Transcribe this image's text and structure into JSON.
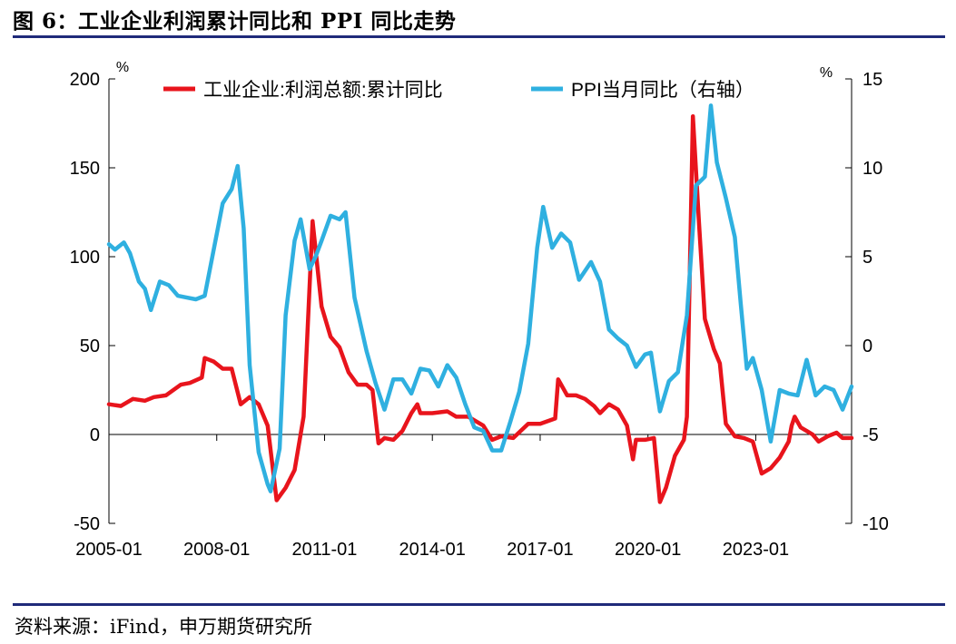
{
  "figure": {
    "title": "图 6：工业企业利润累计同比和 PPI 同比走势",
    "source": "资料来源：iFind，申万期货研究所",
    "colors": {
      "rule": "#1f2a7a",
      "profit": "#e8141c",
      "ppi": "#2fb0e0"
    }
  },
  "chart_data": {
    "type": "line",
    "x_axis": {
      "start": "2005-01",
      "end": "2025-09",
      "tick_labels": [
        "2005-01",
        "2008-01",
        "2011-01",
        "2014-01",
        "2017-01",
        "2020-01",
        "2023-01"
      ]
    },
    "y_left": {
      "unit": "%",
      "range": [
        -50,
        200
      ],
      "ticks": [
        "-50",
        "0",
        "50",
        "100",
        "150",
        "200"
      ]
    },
    "y_right": {
      "unit": "%",
      "range": [
        -10,
        15
      ],
      "ticks": [
        "-10",
        "-5",
        "0",
        "5",
        "10",
        "15"
      ]
    },
    "grid": false,
    "legend_position": "top",
    "zero_line": true,
    "series": [
      {
        "name": "工业企业:利润总额:累计同比",
        "axis": "left",
        "color": "#e8141c",
        "points": [
          [
            "2005-01",
            17
          ],
          [
            "2005-05",
            16
          ],
          [
            "2005-09",
            20
          ],
          [
            "2006-01",
            19
          ],
          [
            "2006-04",
            21
          ],
          [
            "2006-08",
            22
          ],
          [
            "2007-01",
            28
          ],
          [
            "2007-04",
            29
          ],
          [
            "2007-08",
            32
          ],
          [
            "2007-09",
            43
          ],
          [
            "2007-12",
            41
          ],
          [
            "2008-03",
            37
          ],
          [
            "2008-06",
            37
          ],
          [
            "2008-09",
            17
          ],
          [
            "2008-12",
            21
          ],
          [
            "2009-03",
            17
          ],
          [
            "2009-06",
            5
          ],
          [
            "2009-09",
            -37
          ],
          [
            "2009-12",
            -30
          ],
          [
            "2010-03",
            -20
          ],
          [
            "2010-06",
            10
          ],
          [
            "2010-09",
            120
          ],
          [
            "2010-12",
            72
          ],
          [
            "2011-03",
            55
          ],
          [
            "2011-06",
            49
          ],
          [
            "2011-09",
            35
          ],
          [
            "2011-12",
            28
          ],
          [
            "2012-03",
            28
          ],
          [
            "2012-05",
            25
          ],
          [
            "2012-07",
            -5
          ],
          [
            "2012-09",
            -2
          ],
          [
            "2012-12",
            -3
          ],
          [
            "2013-03",
            2
          ],
          [
            "2013-06",
            12
          ],
          [
            "2013-08",
            17
          ],
          [
            "2013-09",
            12
          ],
          [
            "2014-01",
            12
          ],
          [
            "2014-06",
            13
          ],
          [
            "2014-09",
            10
          ],
          [
            "2015-01",
            10
          ],
          [
            "2015-06",
            5
          ],
          [
            "2015-09",
            -3
          ],
          [
            "2015-12",
            -1
          ],
          [
            "2016-04",
            -2
          ],
          [
            "2016-09",
            6
          ],
          [
            "2017-01",
            6
          ],
          [
            "2017-06",
            9
          ],
          [
            "2017-07",
            31
          ],
          [
            "2017-10",
            22
          ],
          [
            "2018-01",
            22
          ],
          [
            "2018-04",
            20
          ],
          [
            "2018-07",
            16
          ],
          [
            "2018-09",
            12
          ],
          [
            "2018-12",
            17
          ],
          [
            "2019-03",
            14
          ],
          [
            "2019-06",
            5
          ],
          [
            "2019-08",
            -14
          ],
          [
            "2019-09",
            -3
          ],
          [
            "2019-12",
            -3
          ],
          [
            "2020-03",
            -2
          ],
          [
            "2020-05",
            -38
          ],
          [
            "2020-07",
            -30
          ],
          [
            "2020-10",
            -12
          ],
          [
            "2021-01",
            -3
          ],
          [
            "2021-02",
            10
          ],
          [
            "2021-04",
            179
          ],
          [
            "2021-06",
            120
          ],
          [
            "2021-08",
            65
          ],
          [
            "2021-11",
            48
          ],
          [
            "2022-01",
            40
          ],
          [
            "2022-03",
            6
          ],
          [
            "2022-06",
            -1
          ],
          [
            "2022-09",
            -2
          ],
          [
            "2022-12",
            -4
          ],
          [
            "2023-03",
            -22
          ],
          [
            "2023-06",
            -19
          ],
          [
            "2023-09",
            -13
          ],
          [
            "2023-12",
            -4
          ],
          [
            "2024-01",
            5
          ],
          [
            "2024-02",
            10
          ],
          [
            "2024-04",
            4
          ],
          [
            "2024-08",
            0
          ],
          [
            "2024-10",
            -4
          ],
          [
            "2025-01",
            -1
          ],
          [
            "2025-04",
            1
          ],
          [
            "2025-06",
            -2
          ],
          [
            "2025-09",
            -2
          ]
        ]
      },
      {
        "name": "PPI当月同比（右轴）",
        "axis": "right",
        "color": "#2fb0e0",
        "points": [
          [
            "2005-01",
            5.7
          ],
          [
            "2005-03",
            5.4
          ],
          [
            "2005-06",
            5.8
          ],
          [
            "2005-08",
            5.2
          ],
          [
            "2005-11",
            3.6
          ],
          [
            "2006-01",
            3.2
          ],
          [
            "2006-03",
            2.0
          ],
          [
            "2006-06",
            3.6
          ],
          [
            "2006-09",
            3.4
          ],
          [
            "2006-12",
            2.8
          ],
          [
            "2007-03",
            2.7
          ],
          [
            "2007-06",
            2.6
          ],
          [
            "2007-09",
            2.8
          ],
          [
            "2007-12",
            5.4
          ],
          [
            "2008-03",
            8.0
          ],
          [
            "2008-06",
            8.8
          ],
          [
            "2008-08",
            10.1
          ],
          [
            "2008-10",
            6.6
          ],
          [
            "2008-12",
            -1.1
          ],
          [
            "2009-03",
            -6.0
          ],
          [
            "2009-06",
            -7.8
          ],
          [
            "2009-07",
            -8.2
          ],
          [
            "2009-10",
            -5.8
          ],
          [
            "2009-12",
            1.7
          ],
          [
            "2010-03",
            5.9
          ],
          [
            "2010-05",
            7.1
          ],
          [
            "2010-08",
            4.3
          ],
          [
            "2010-10",
            5.0
          ],
          [
            "2010-12",
            5.9
          ],
          [
            "2011-03",
            7.3
          ],
          [
            "2011-06",
            7.1
          ],
          [
            "2011-08",
            7.5
          ],
          [
            "2011-11",
            2.7
          ],
          [
            "2012-03",
            -0.3
          ],
          [
            "2012-06",
            -2.1
          ],
          [
            "2012-09",
            -3.6
          ],
          [
            "2012-12",
            -1.9
          ],
          [
            "2013-03",
            -1.9
          ],
          [
            "2013-06",
            -2.7
          ],
          [
            "2013-09",
            -1.3
          ],
          [
            "2013-12",
            -1.4
          ],
          [
            "2014-03",
            -2.3
          ],
          [
            "2014-06",
            -1.1
          ],
          [
            "2014-09",
            -1.8
          ],
          [
            "2014-12",
            -3.3
          ],
          [
            "2015-03",
            -4.6
          ],
          [
            "2015-06",
            -4.8
          ],
          [
            "2015-09",
            -5.9
          ],
          [
            "2015-12",
            -5.9
          ],
          [
            "2016-03",
            -4.3
          ],
          [
            "2016-06",
            -2.6
          ],
          [
            "2016-09",
            0.1
          ],
          [
            "2016-12",
            5.5
          ],
          [
            "2017-02",
            7.8
          ],
          [
            "2017-05",
            5.5
          ],
          [
            "2017-08",
            6.3
          ],
          [
            "2017-11",
            5.8
          ],
          [
            "2018-02",
            3.7
          ],
          [
            "2018-06",
            4.7
          ],
          [
            "2018-09",
            3.6
          ],
          [
            "2018-12",
            0.9
          ],
          [
            "2019-03",
            0.4
          ],
          [
            "2019-06",
            0.0
          ],
          [
            "2019-09",
            -1.2
          ],
          [
            "2019-12",
            -0.5
          ],
          [
            "2020-02",
            -0.4
          ],
          [
            "2020-05",
            -3.7
          ],
          [
            "2020-08",
            -2.0
          ],
          [
            "2020-11",
            -1.5
          ],
          [
            "2021-02",
            1.7
          ],
          [
            "2021-05",
            9.0
          ],
          [
            "2021-08",
            9.5
          ],
          [
            "2021-10",
            13.5
          ],
          [
            "2021-12",
            10.3
          ],
          [
            "2022-03",
            8.3
          ],
          [
            "2022-06",
            6.1
          ],
          [
            "2022-08",
            2.3
          ],
          [
            "2022-10",
            -1.3
          ],
          [
            "2022-12",
            -0.7
          ],
          [
            "2023-03",
            -2.5
          ],
          [
            "2023-06",
            -5.4
          ],
          [
            "2023-09",
            -2.5
          ],
          [
            "2023-12",
            -2.7
          ],
          [
            "2024-03",
            -2.8
          ],
          [
            "2024-06",
            -0.8
          ],
          [
            "2024-09",
            -2.8
          ],
          [
            "2024-12",
            -2.3
          ],
          [
            "2025-03",
            -2.5
          ],
          [
            "2025-06",
            -3.6
          ],
          [
            "2025-09",
            -2.3
          ]
        ]
      }
    ]
  }
}
